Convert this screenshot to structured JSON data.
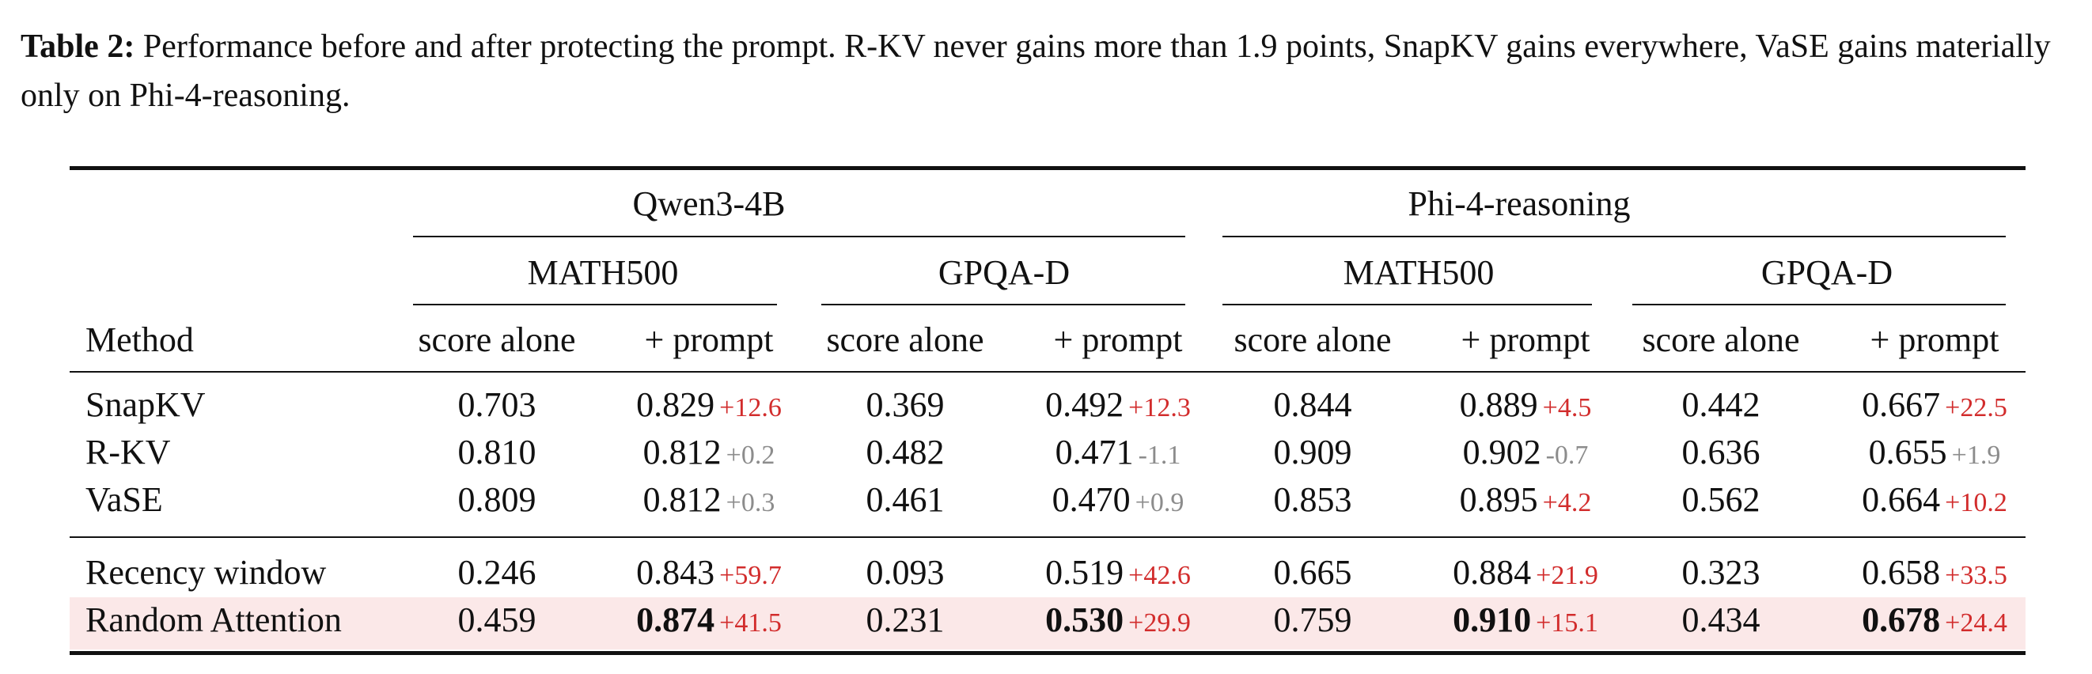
{
  "caption": {
    "label": "Table 2:",
    "text": " Performance before and after protecting the prompt. R-KV never gains more than 1.9 points, SnapKV gains everywhere, VaSE gains materially only on Phi-4-reasoning."
  },
  "table": {
    "models": [
      "Qwen3-4B",
      "Phi-4-reasoning"
    ],
    "benchmarks": [
      "MATH500",
      "GPQA-D",
      "MATH500",
      "GPQA-D"
    ],
    "col_headers": [
      "Method",
      "score alone",
      "+ prompt",
      "score alone",
      "+ prompt",
      "score alone",
      "+ prompt",
      "score alone",
      "+ prompt"
    ],
    "rows": [
      {
        "method": "SnapKV",
        "cells": [
          {
            "v": "0.703"
          },
          {
            "v": "0.829",
            "d": "+12.6",
            "dc": "pos"
          },
          {
            "v": "0.369"
          },
          {
            "v": "0.492",
            "d": "+12.3",
            "dc": "pos"
          },
          {
            "v": "0.844"
          },
          {
            "v": "0.889",
            "d": "+4.5",
            "dc": "pos"
          },
          {
            "v": "0.442"
          },
          {
            "v": "0.667",
            "d": "+22.5",
            "dc": "pos"
          }
        ]
      },
      {
        "method": "R-KV",
        "cells": [
          {
            "v": "0.810"
          },
          {
            "v": "0.812",
            "d": "+0.2",
            "dc": "neg"
          },
          {
            "v": "0.482"
          },
          {
            "v": "0.471",
            "d": "-1.1",
            "dc": "neg"
          },
          {
            "v": "0.909"
          },
          {
            "v": "0.902",
            "d": "-0.7",
            "dc": "neg"
          },
          {
            "v": "0.636"
          },
          {
            "v": "0.655",
            "d": "+1.9",
            "dc": "neg"
          }
        ]
      },
      {
        "method": "VaSE",
        "cells": [
          {
            "v": "0.809"
          },
          {
            "v": "0.812",
            "d": "+0.3",
            "dc": "neg"
          },
          {
            "v": "0.461"
          },
          {
            "v": "0.470",
            "d": "+0.9",
            "dc": "neg"
          },
          {
            "v": "0.853"
          },
          {
            "v": "0.895",
            "d": "+4.2",
            "dc": "pos"
          },
          {
            "v": "0.562"
          },
          {
            "v": "0.664",
            "d": "+10.2",
            "dc": "pos"
          }
        ]
      },
      {
        "method": "Recency window",
        "cells": [
          {
            "v": "0.246"
          },
          {
            "v": "0.843",
            "d": "+59.7",
            "dc": "pos"
          },
          {
            "v": "0.093"
          },
          {
            "v": "0.519",
            "d": "+42.6",
            "dc": "pos"
          },
          {
            "v": "0.665"
          },
          {
            "v": "0.884",
            "d": "+21.9",
            "dc": "pos"
          },
          {
            "v": "0.323"
          },
          {
            "v": "0.658",
            "d": "+33.5",
            "dc": "pos"
          }
        ]
      },
      {
        "method": "Random Attention",
        "highlight": true,
        "cells": [
          {
            "v": "0.459"
          },
          {
            "v": "0.874",
            "d": "+41.5",
            "dc": "pos",
            "bold": true
          },
          {
            "v": "0.231"
          },
          {
            "v": "0.530",
            "d": "+29.9",
            "dc": "pos",
            "bold": true
          },
          {
            "v": "0.759"
          },
          {
            "v": "0.910",
            "d": "+15.1",
            "dc": "pos",
            "bold": true
          },
          {
            "v": "0.434"
          },
          {
            "v": "0.678",
            "d": "+24.4",
            "dc": "pos",
            "bold": true
          }
        ]
      }
    ]
  },
  "colors": {
    "delta_positive": "#d22c2c",
    "delta_neutral": "#8c8c8c",
    "highlight_row": "#fbe8e8"
  }
}
